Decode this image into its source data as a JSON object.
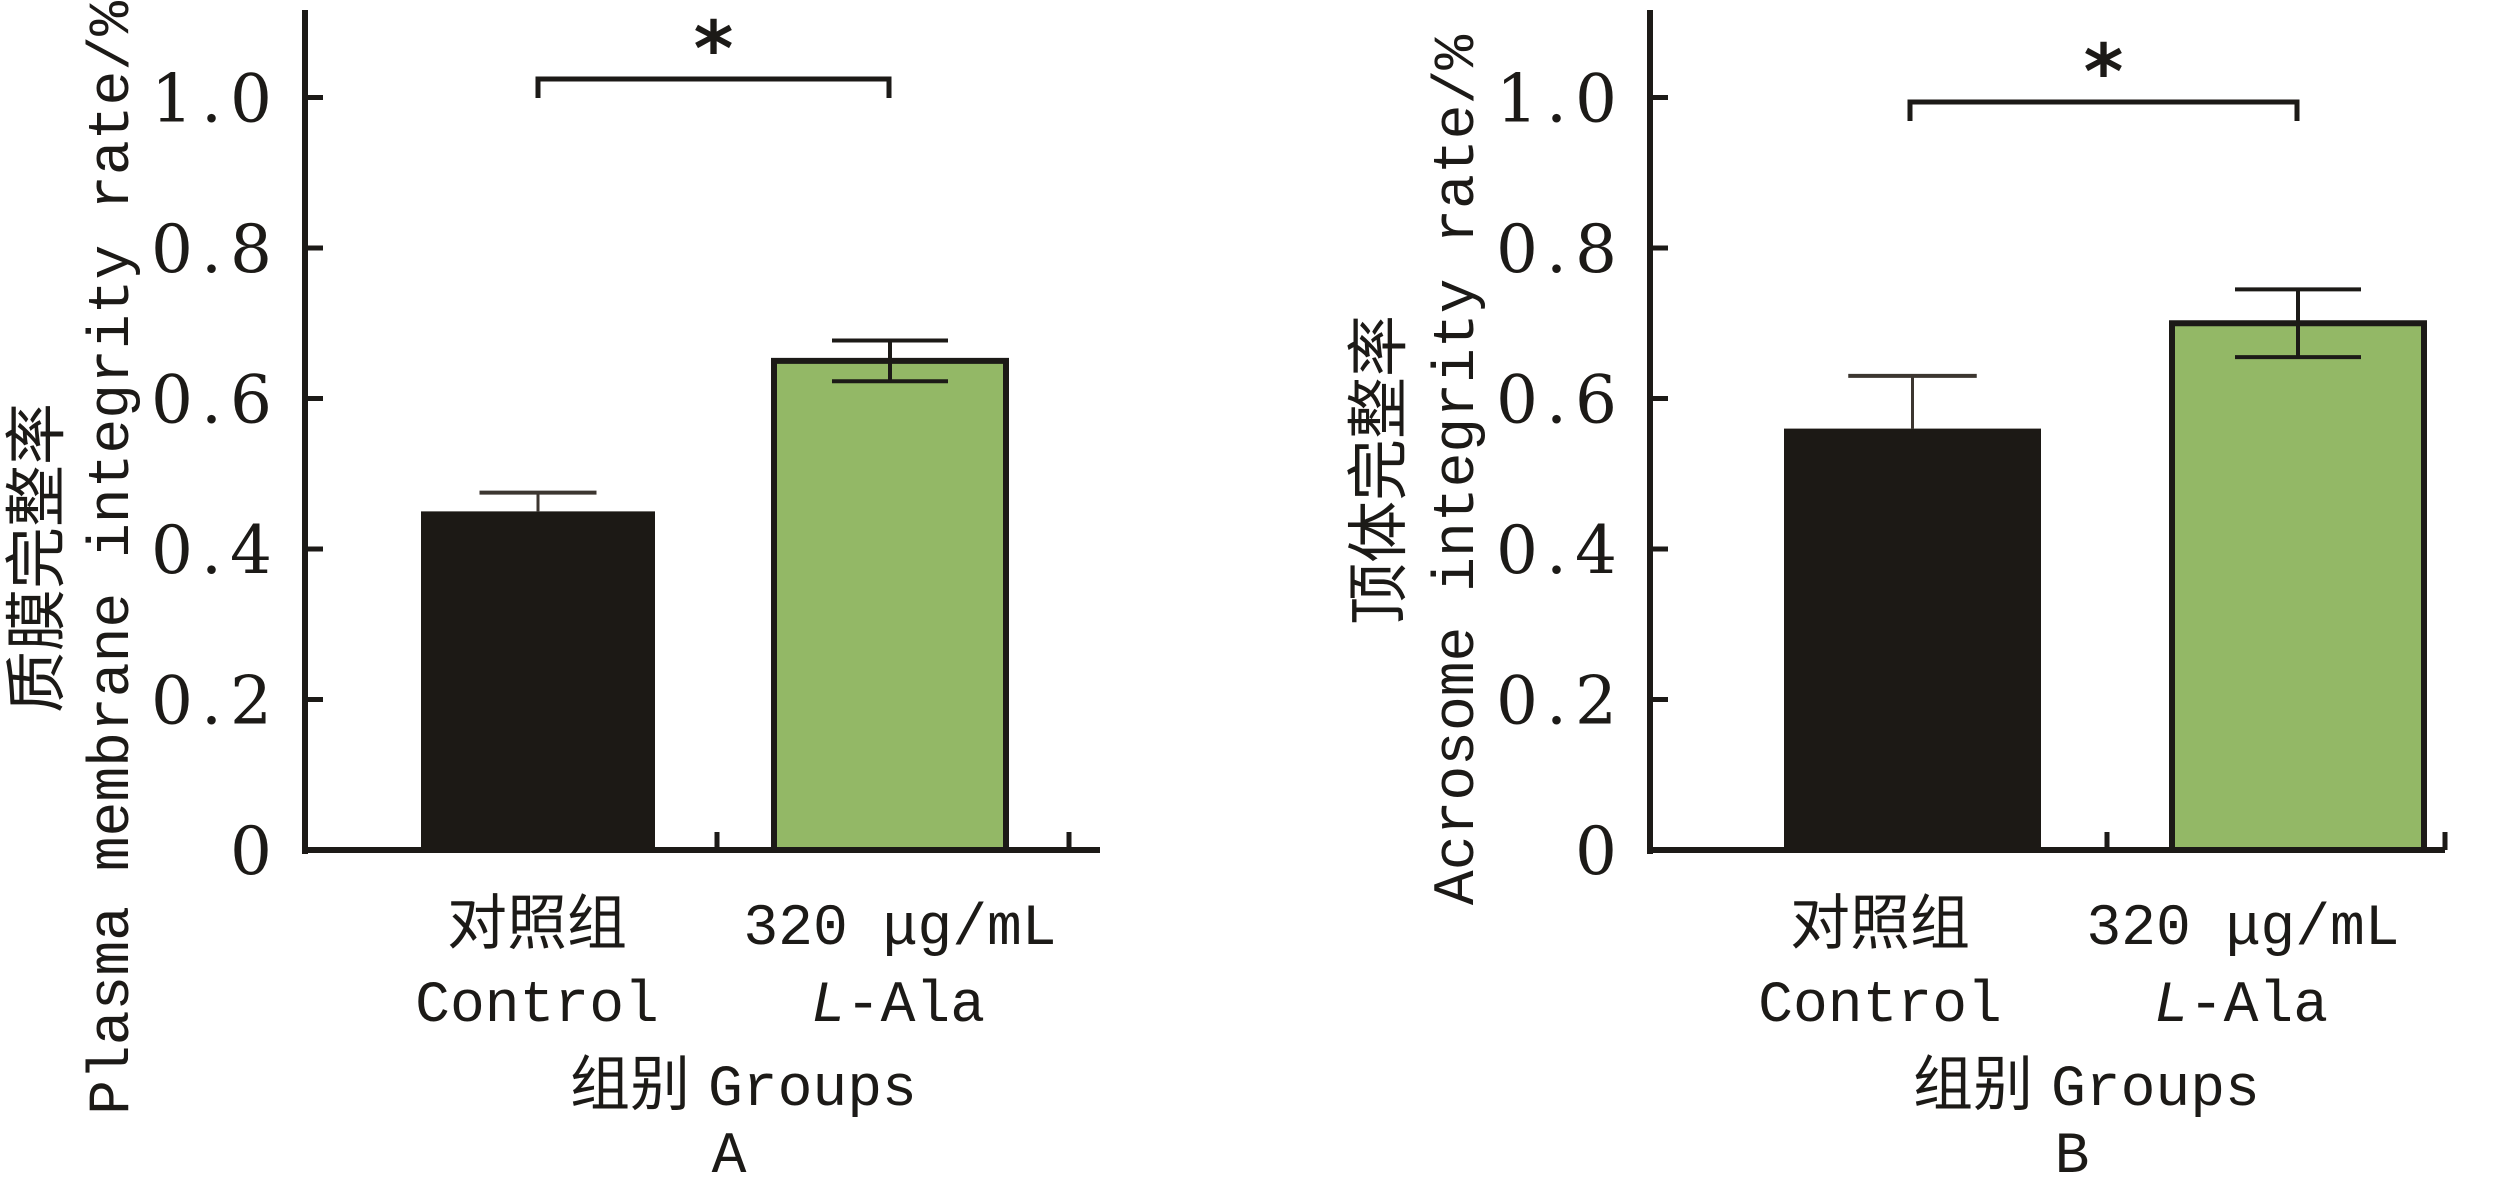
{
  "colors": {
    "control": "#1c1915",
    "treatment": "#93b866",
    "axis": "#1c1a17"
  },
  "chart_data": [
    {
      "type": "bar",
      "panel": "A",
      "title": "",
      "ylabel_zh": "质膜完整率",
      "ylabel_en": "Plasma membrane integrity rate/%",
      "xlabel_zh": "组别",
      "xlabel_en": "Groups",
      "ylim": [
        0,
        1.1
      ],
      "yticks": [
        0,
        0.2,
        0.4,
        0.6,
        0.8,
        1.0
      ],
      "ytick_labels": [
        "0",
        "0.2",
        "0.4",
        "0.6",
        "0.8",
        "1.0"
      ],
      "grid": false,
      "categories": [
        {
          "zh": "对照组",
          "en": "Control"
        },
        {
          "dose": "320 μg/mL",
          "name_prefix": "L",
          "name_suffix": "-Ala"
        }
      ],
      "values": [
        0.45,
        0.65
      ],
      "errors": [
        0.025,
        0.027
      ],
      "significance": {
        "between": [
          0,
          1
        ],
        "label": "*"
      }
    },
    {
      "type": "bar",
      "panel": "B",
      "title": "",
      "ylabel_zh": "顶体完整率",
      "ylabel_en": "Acrosome integrity rate/%",
      "xlabel_zh": "组别",
      "xlabel_en": "Groups",
      "ylim": [
        0,
        1.1
      ],
      "yticks": [
        0,
        0.2,
        0.4,
        0.6,
        0.8,
        1.0
      ],
      "ytick_labels": [
        "0",
        "0.2",
        "0.4",
        "0.6",
        "0.8",
        "1.0"
      ],
      "grid": false,
      "categories": [
        {
          "zh": "对照组",
          "en": "Control"
        },
        {
          "dose": "320 μg/mL",
          "name_prefix": "L",
          "name_suffix": "-Ala"
        }
      ],
      "values": [
        0.56,
        0.7
      ],
      "errors": [
        0.07,
        0.045
      ],
      "significance": {
        "between": [
          0,
          1
        ],
        "label": "*"
      }
    }
  ]
}
